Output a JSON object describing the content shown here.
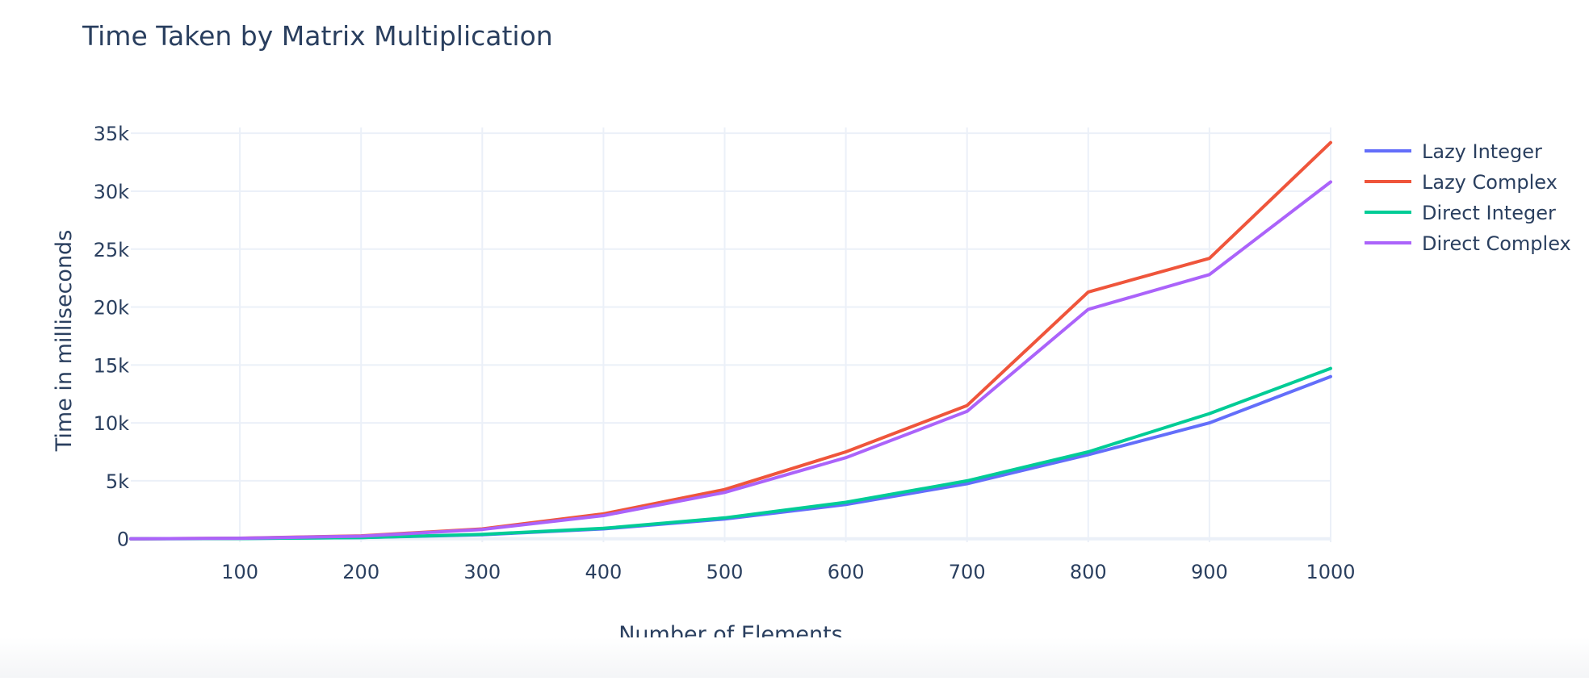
{
  "chart_data": {
    "type": "line",
    "title": "Time Taken by Matrix Multiplication",
    "xlabel": "Number of Elements",
    "ylabel": "Time in milliseconds",
    "x": [
      10,
      100,
      200,
      300,
      400,
      500,
      600,
      700,
      800,
      900,
      1000
    ],
    "xlim": [
      10,
      1000
    ],
    "ylim": [
      -300,
      35500
    ],
    "x_ticks": [
      100,
      200,
      300,
      400,
      500,
      600,
      700,
      800,
      900,
      1000
    ],
    "x_tick_labels": [
      "100",
      "200",
      "300",
      "400",
      "500",
      "600",
      "700",
      "800",
      "900",
      "1000"
    ],
    "y_ticks": [
      0,
      5000,
      10000,
      15000,
      20000,
      25000,
      30000,
      35000
    ],
    "y_tick_labels": [
      "0",
      "5k",
      "10k",
      "15k",
      "20k",
      "25k",
      "30k",
      "35k"
    ],
    "grid": true,
    "legend_position": "top-right",
    "series": [
      {
        "name": "Lazy Integer",
        "color": "#636efa",
        "values": [
          0,
          20,
          100,
          350,
          850,
          1700,
          2950,
          4750,
          7250,
          10000,
          14000
        ]
      },
      {
        "name": "Lazy Complex",
        "color": "#ef553b",
        "values": [
          0,
          50,
          250,
          850,
          2150,
          4250,
          7500,
          11500,
          21300,
          24200,
          34200
        ]
      },
      {
        "name": "Direct Integer",
        "color": "#00cc96",
        "values": [
          0,
          20,
          100,
          380,
          900,
          1800,
          3150,
          5000,
          7500,
          10800,
          14700
        ]
      },
      {
        "name": "Direct Complex",
        "color": "#ab63fa",
        "values": [
          0,
          40,
          220,
          800,
          2000,
          4000,
          7000,
          11000,
          19800,
          22800,
          30800
        ]
      }
    ]
  }
}
